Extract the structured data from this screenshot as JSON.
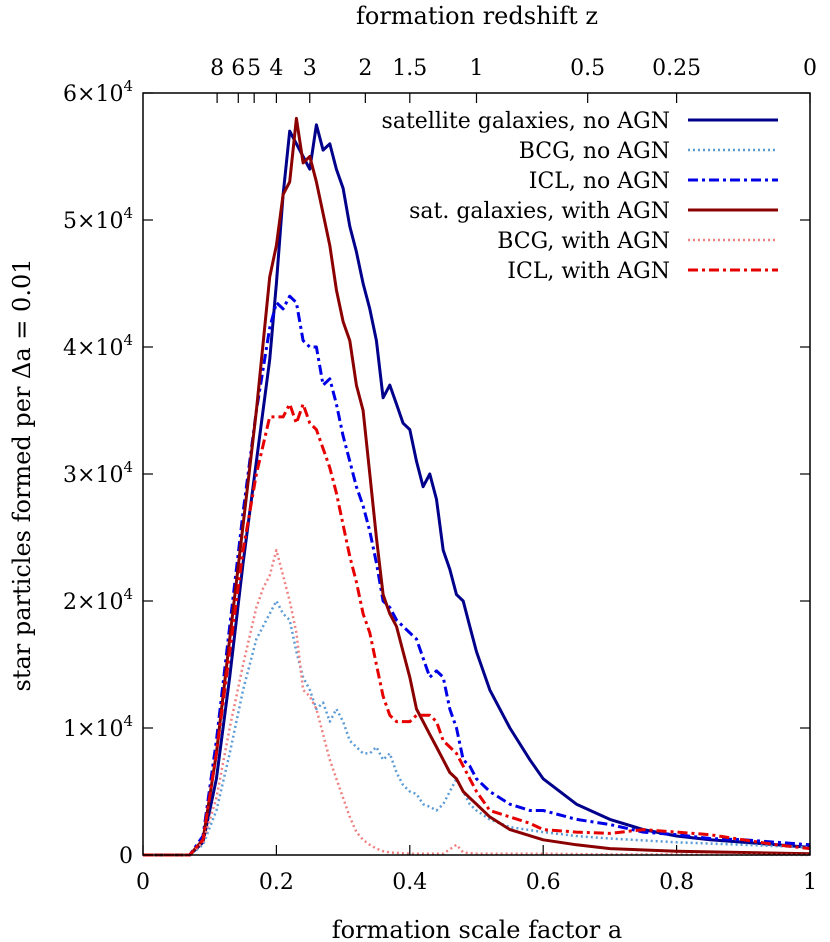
{
  "chart_data": {
    "type": "line",
    "xlabel": "formation scale factor a",
    "ylabel": "star particles formed per Δa = 0.01",
    "top_axis_title": "formation redshift z",
    "xlim": [
      0,
      1
    ],
    "ylim": [
      0,
      60000
    ],
    "x_ticks": [
      {
        "value": 0,
        "label": "0"
      },
      {
        "value": 0.2,
        "label": "0.2"
      },
      {
        "value": 0.4,
        "label": "0.4"
      },
      {
        "value": 0.6,
        "label": "0.6"
      },
      {
        "value": 0.8,
        "label": "0.8"
      },
      {
        "value": 1,
        "label": "1"
      }
    ],
    "y_ticks": [
      {
        "value": 0,
        "mant": "0",
        "exp": ""
      },
      {
        "value": 10000,
        "mant": "1×10",
        "exp": "4"
      },
      {
        "value": 20000,
        "mant": "2×10",
        "exp": "4"
      },
      {
        "value": 30000,
        "mant": "3×10",
        "exp": "4"
      },
      {
        "value": 40000,
        "mant": "4×10",
        "exp": "4"
      },
      {
        "value": 50000,
        "mant": "5×10",
        "exp": "4"
      },
      {
        "value": 60000,
        "mant": "6×10",
        "exp": "4"
      }
    ],
    "z_ticks": [
      {
        "z": 8,
        "label": "8"
      },
      {
        "z": 6,
        "label": "6"
      },
      {
        "z": 5,
        "label": "5"
      },
      {
        "z": 4,
        "label": "4"
      },
      {
        "z": 3,
        "label": "3"
      },
      {
        "z": 2,
        "label": "2"
      },
      {
        "z": 1.5,
        "label": "1.5"
      },
      {
        "z": 1,
        "label": "1"
      },
      {
        "z": 0.5,
        "label": "0.5"
      },
      {
        "z": 0.25,
        "label": "0.25"
      },
      {
        "z": 0,
        "label": "0"
      }
    ],
    "legend_position": "top-right",
    "series": [
      {
        "name": "satellite galaxies, no AGN",
        "color": "#00008b",
        "dash": "solid",
        "x": [
          0,
          0.07,
          0.09,
          0.11,
          0.13,
          0.15,
          0.17,
          0.19,
          0.2,
          0.21,
          0.22,
          0.23,
          0.24,
          0.25,
          0.26,
          0.27,
          0.28,
          0.29,
          0.3,
          0.31,
          0.32,
          0.33,
          0.34,
          0.35,
          0.36,
          0.37,
          0.38,
          0.39,
          0.4,
          0.41,
          0.42,
          0.43,
          0.44,
          0.45,
          0.46,
          0.47,
          0.48,
          0.49,
          0.5,
          0.52,
          0.55,
          0.58,
          0.6,
          0.65,
          0.7,
          0.75,
          0.8,
          0.85,
          0.9,
          0.95,
          1.0
        ],
        "y": [
          0,
          0,
          1000,
          6000,
          14000,
          23000,
          31000,
          39000,
          45000,
          52000,
          57000,
          56000,
          55000,
          54000,
          57500,
          55500,
          56000,
          54000,
          52500,
          49500,
          47500,
          45000,
          43000,
          40500,
          36000,
          37000,
          35500,
          34000,
          33500,
          31000,
          29000,
          30000,
          28000,
          24000,
          22500,
          20500,
          20000,
          18000,
          16000,
          13000,
          10000,
          7500,
          6000,
          4000,
          2800,
          2000,
          1500,
          1200,
          1000,
          800,
          600
        ]
      },
      {
        "name": "BCG, no AGN",
        "color": "#5b9bd5",
        "dash": "dotted",
        "x": [
          0,
          0.07,
          0.09,
          0.11,
          0.13,
          0.15,
          0.17,
          0.19,
          0.2,
          0.21,
          0.22,
          0.23,
          0.24,
          0.25,
          0.26,
          0.27,
          0.28,
          0.29,
          0.3,
          0.31,
          0.32,
          0.33,
          0.34,
          0.35,
          0.36,
          0.37,
          0.38,
          0.39,
          0.4,
          0.41,
          0.42,
          0.43,
          0.44,
          0.45,
          0.46,
          0.47,
          0.48,
          0.49,
          0.5,
          0.52,
          0.55,
          0.6,
          0.65,
          0.7,
          0.8,
          0.9,
          1.0
        ],
        "y": [
          0,
          0,
          800,
          3500,
          8000,
          13000,
          17000,
          19000,
          20000,
          19000,
          18500,
          16000,
          14000,
          13000,
          11500,
          12000,
          10500,
          11500,
          10500,
          9000,
          8500,
          8000,
          8000,
          8500,
          7500,
          8000,
          6500,
          5500,
          5000,
          4800,
          4000,
          3800,
          3500,
          4000,
          5000,
          6000,
          5000,
          4000,
          3500,
          2800,
          2200,
          1800,
          1500,
          1300,
          1000,
          800,
          600
        ]
      },
      {
        "name": "ICL, no AGN",
        "color": "#0000e6",
        "dash": "dashdot",
        "x": [
          0,
          0.07,
          0.09,
          0.11,
          0.13,
          0.15,
          0.17,
          0.19,
          0.2,
          0.21,
          0.22,
          0.23,
          0.24,
          0.25,
          0.26,
          0.27,
          0.28,
          0.29,
          0.3,
          0.31,
          0.32,
          0.33,
          0.34,
          0.35,
          0.36,
          0.37,
          0.38,
          0.39,
          0.4,
          0.41,
          0.42,
          0.43,
          0.44,
          0.45,
          0.46,
          0.47,
          0.48,
          0.49,
          0.5,
          0.52,
          0.55,
          0.58,
          0.6,
          0.65,
          0.7,
          0.75,
          0.8,
          0.85,
          0.9,
          0.95,
          1.0
        ],
        "y": [
          0,
          0,
          1500,
          9000,
          18000,
          27000,
          35000,
          41500,
          43500,
          43000,
          44000,
          43500,
          40500,
          40000,
          40000,
          37000,
          37500,
          35500,
          33000,
          31000,
          29000,
          27500,
          25500,
          23000,
          20000,
          19500,
          18500,
          18000,
          17500,
          17000,
          15500,
          14000,
          14500,
          14000,
          11500,
          10000,
          7500,
          7000,
          6000,
          5000,
          4000,
          3500,
          3500,
          2800,
          2400,
          1800,
          1600,
          1300,
          1200,
          1000,
          800
        ]
      },
      {
        "name": "sat. galaxies, with AGN",
        "color": "#8b0000",
        "dash": "solid",
        "x": [
          0,
          0.07,
          0.09,
          0.11,
          0.13,
          0.15,
          0.17,
          0.19,
          0.2,
          0.21,
          0.22,
          0.23,
          0.24,
          0.25,
          0.26,
          0.27,
          0.28,
          0.29,
          0.3,
          0.31,
          0.32,
          0.33,
          0.34,
          0.35,
          0.36,
          0.37,
          0.38,
          0.39,
          0.4,
          0.41,
          0.42,
          0.43,
          0.44,
          0.45,
          0.46,
          0.47,
          0.48,
          0.49,
          0.5,
          0.52,
          0.55,
          0.6,
          0.65,
          0.7,
          0.8,
          0.9,
          1.0
        ],
        "y": [
          0,
          0,
          1200,
          8000,
          17000,
          26000,
          35000,
          45500,
          48000,
          52000,
          53000,
          58000,
          54500,
          55000,
          53000,
          50500,
          48000,
          44500,
          42000,
          40500,
          37000,
          35000,
          30000,
          25000,
          20500,
          19000,
          18000,
          16000,
          14000,
          11500,
          10500,
          9500,
          8500,
          7500,
          6500,
          6000,
          5000,
          4500,
          4000,
          3000,
          2000,
          1200,
          800,
          500,
          300,
          200,
          100
        ]
      },
      {
        "name": "BCG, with AGN",
        "color": "#f08080",
        "dash": "dotted",
        "x": [
          0,
          0.07,
          0.09,
          0.11,
          0.13,
          0.15,
          0.17,
          0.18,
          0.19,
          0.2,
          0.21,
          0.22,
          0.23,
          0.24,
          0.25,
          0.26,
          0.27,
          0.28,
          0.29,
          0.3,
          0.31,
          0.32,
          0.33,
          0.34,
          0.35,
          0.36,
          0.37,
          0.4,
          0.45,
          0.47,
          0.48,
          0.5,
          0.6,
          0.7,
          0.8,
          1.0
        ],
        "y": [
          0,
          0,
          1000,
          4500,
          10000,
          15000,
          19500,
          21000,
          22000,
          24000,
          22000,
          20000,
          17500,
          13000,
          12500,
          11500,
          9500,
          7500,
          6000,
          4500,
          3000,
          1800,
          1200,
          800,
          500,
          300,
          200,
          100,
          100,
          800,
          200,
          100,
          100,
          50,
          50,
          0
        ]
      },
      {
        "name": "ICL, with AGN",
        "color": "#e60000",
        "dash": "dashdot",
        "x": [
          0,
          0.07,
          0.09,
          0.11,
          0.13,
          0.15,
          0.17,
          0.19,
          0.2,
          0.21,
          0.22,
          0.23,
          0.24,
          0.25,
          0.26,
          0.27,
          0.28,
          0.29,
          0.3,
          0.31,
          0.32,
          0.33,
          0.34,
          0.35,
          0.36,
          0.37,
          0.38,
          0.39,
          0.4,
          0.41,
          0.42,
          0.43,
          0.44,
          0.45,
          0.46,
          0.47,
          0.48,
          0.49,
          0.5,
          0.52,
          0.55,
          0.58,
          0.6,
          0.65,
          0.7,
          0.75,
          0.8,
          0.85,
          0.9,
          0.95,
          1.0
        ],
        "y": [
          0,
          0,
          1200,
          8000,
          16000,
          24000,
          30000,
          34500,
          34500,
          34500,
          35500,
          34000,
          35500,
          34000,
          33500,
          32000,
          30500,
          28500,
          26000,
          23500,
          21500,
          19000,
          17500,
          15000,
          12500,
          11000,
          10500,
          10500,
          10500,
          11000,
          11000,
          11000,
          10500,
          9000,
          8500,
          8000,
          7000,
          6000,
          5000,
          3500,
          3000,
          2500,
          2000,
          1800,
          1700,
          2000,
          1800,
          1600,
          1200,
          800,
          500
        ]
      }
    ]
  }
}
